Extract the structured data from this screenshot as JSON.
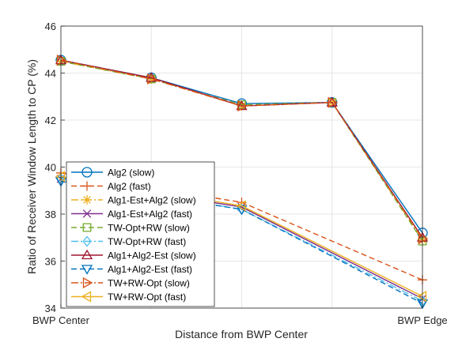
{
  "chart_data": {
    "type": "line",
    "title": "",
    "xlabel": "Distance from BWP Center",
    "ylabel": "Ratio of Receiver Window Length to CP (%)",
    "x": [
      0,
      1,
      2,
      3,
      4
    ],
    "xlim": [
      0,
      4
    ],
    "ylim": [
      34,
      46
    ],
    "yticks": [
      34,
      36,
      38,
      40,
      42,
      44,
      46
    ],
    "xtick_labels": [
      {
        "x": 0,
        "label": "BWP Center"
      },
      {
        "x": 4,
        "label": "BWP Edge"
      }
    ],
    "grid": true,
    "legend_position": "lower-left",
    "series": [
      {
        "name": "Alg2 (slow)",
        "values": [
          44.55,
          43.8,
          42.7,
          42.75,
          37.2
        ],
        "color": "#0072bd",
        "dash": "solid",
        "marker": "circle"
      },
      {
        "name": "Alg2 (fast)",
        "values": [
          39.75,
          null,
          38.5,
          null,
          35.2
        ],
        "color": "#d95319",
        "dash": "dashed",
        "marker": "plus"
      },
      {
        "name": "Alg1-Est+Alg2 (slow)",
        "values": [
          44.5,
          43.75,
          42.6,
          42.75,
          36.9
        ],
        "color": "#edb120",
        "dash": "dashdot",
        "marker": "asterisk"
      },
      {
        "name": "Alg1-Est+Alg2 (fast)",
        "values": [
          39.5,
          null,
          38.3,
          null,
          34.4
        ],
        "color": "#7e2f8e",
        "dash": "solid",
        "marker": "x"
      },
      {
        "name": "TW-Opt+RW (slow)",
        "values": [
          44.5,
          43.75,
          42.65,
          42.75,
          36.85
        ],
        "color": "#77ac30",
        "dash": "dashed",
        "marker": "square"
      },
      {
        "name": "TW-Opt+RW (fast)",
        "values": [
          39.5,
          null,
          38.2,
          null,
          34.3
        ],
        "color": "#4dbeee",
        "dash": "dashdot",
        "marker": "diamond"
      },
      {
        "name": "Alg1+Alg2-Est (slow)",
        "values": [
          44.55,
          43.8,
          42.6,
          42.75,
          37.0
        ],
        "color": "#a2142f",
        "dash": "solid",
        "marker": "triangle-up"
      },
      {
        "name": "Alg1+Alg2-Est (fast)",
        "values": [
          39.4,
          null,
          38.2,
          null,
          34.2
        ],
        "color": "#0072bd",
        "dash": "dashed",
        "marker": "triangle-down"
      },
      {
        "name": "TW+RW-Opt (slow)",
        "values": [
          44.55,
          43.75,
          42.6,
          42.75,
          36.95
        ],
        "color": "#d95319",
        "dash": "dashdot",
        "marker": "triangle-right"
      },
      {
        "name": "TW+RW-Opt (fast)",
        "values": [
          39.6,
          null,
          38.35,
          null,
          34.5
        ],
        "color": "#edb120",
        "dash": "solid",
        "marker": "triangle-left"
      }
    ]
  }
}
